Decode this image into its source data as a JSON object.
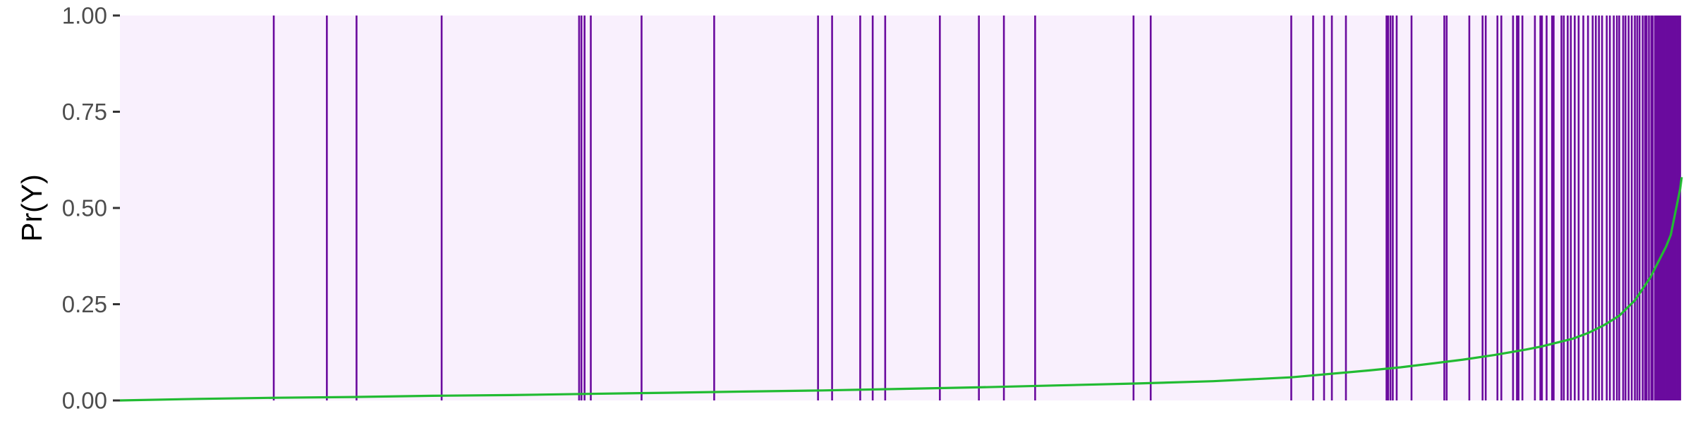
{
  "chart_data": {
    "type": "line",
    "ylabel": "Pr(Y)",
    "xlabel": "",
    "ylim": [
      0,
      1
    ],
    "yticks": [
      {
        "value": 0.0,
        "label": "0.00"
      },
      {
        "value": 0.25,
        "label": "0.25"
      },
      {
        "value": 0.5,
        "label": "0.50"
      },
      {
        "value": 0.75,
        "label": "0.75"
      },
      {
        "value": 1.0,
        "label": "1.00"
      }
    ],
    "x_ticks_shown": false,
    "xlim": [
      0,
      1000
    ],
    "grid": false,
    "colors": {
      "panel_background": "#f9f0fd",
      "event_line": "#6a0a9e",
      "curve": "#22bb33",
      "tick_text": "#4d4d4d",
      "tick_mark": "#333333"
    },
    "event_lines_x": [
      98.5,
      132.5,
      151.5,
      206,
      294,
      295.5,
      297.5,
      301.5,
      334,
      380.5,
      447,
      456,
      474,
      482,
      490,
      525,
      550,
      566,
      586,
      649,
      660,
      750,
      764,
      771,
      776,
      785,
      811,
      812,
      813.5,
      815,
      817.5,
      827,
      848,
      849.5,
      864,
      872.5,
      874.5,
      882,
      884.5,
      892,
      894.5,
      895.5,
      898,
      906,
      909.5,
      910.5,
      913.5,
      917,
      918,
      923,
      924.5,
      927,
      929,
      931.5,
      934,
      937,
      940,
      943,
      945,
      947,
      949,
      952,
      954,
      956.5,
      958.5,
      960,
      962.5,
      964,
      966,
      968,
      970,
      971.5,
      973,
      975,
      976.5,
      977.5,
      979,
      980.5,
      981.5,
      983,
      984,
      985,
      986,
      987,
      988,
      989,
      990,
      991,
      992,
      993,
      994,
      995,
      996,
      997,
      998,
      999
    ],
    "series": [
      {
        "x": [
          0,
          50,
          100,
          150,
          200,
          250,
          300,
          350,
          400,
          450,
          500,
          550,
          600,
          650,
          700,
          750,
          800,
          820,
          840,
          860,
          880,
          900,
          910,
          920,
          930,
          940,
          950,
          960,
          970,
          975,
          980,
          985,
          990,
          993,
          995,
          997,
          999,
          1000
        ],
        "y": [
          0.0,
          0.004,
          0.007,
          0.009,
          0.012,
          0.014,
          0.017,
          0.02,
          0.023,
          0.026,
          0.03,
          0.034,
          0.039,
          0.044,
          0.05,
          0.06,
          0.078,
          0.086,
          0.096,
          0.106,
          0.118,
          0.132,
          0.14,
          0.15,
          0.16,
          0.175,
          0.195,
          0.22,
          0.26,
          0.29,
          0.32,
          0.36,
          0.4,
          0.43,
          0.47,
          0.51,
          0.55,
          0.58
        ]
      }
    ]
  }
}
